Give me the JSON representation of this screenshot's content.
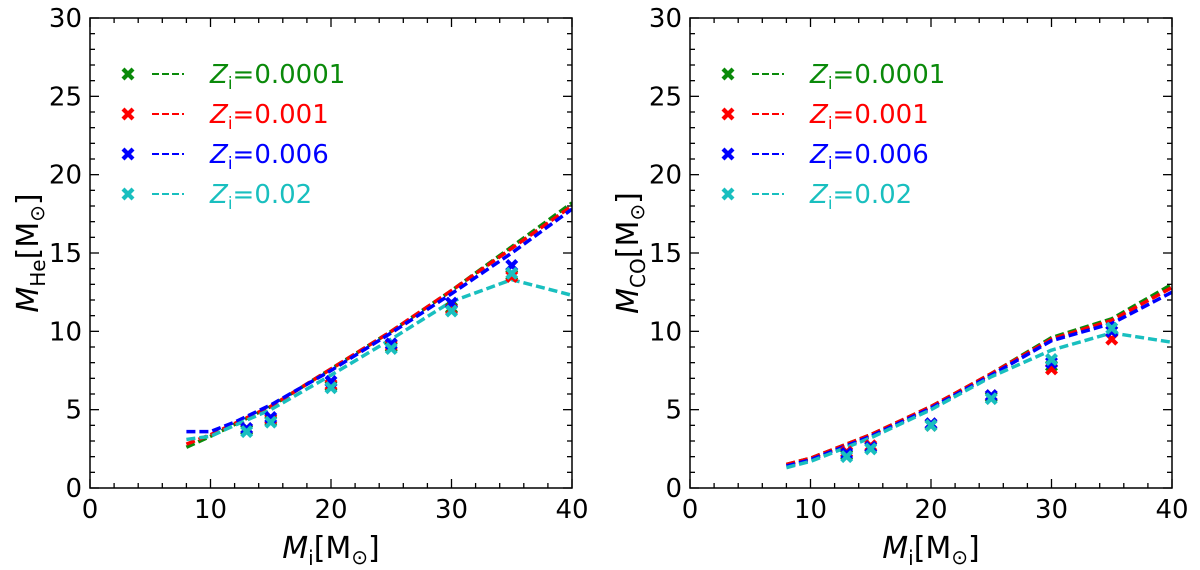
{
  "figure": {
    "panels": 2
  },
  "colors": {
    "green": "#0a8a0a",
    "red": "#ff0000",
    "blue": "#0000ff",
    "cyan": "#19bfbf",
    "axis": "#000000"
  },
  "chart_data": [
    {
      "type": "line",
      "panel": "left",
      "xlabel": {
        "sym": "M",
        "sub": "i",
        "unit": "[M",
        "unitsub": "⊙",
        "close": "]"
      },
      "ylabel": {
        "sym": "M",
        "sub": "He",
        "unit": "[M",
        "unitsub": "⊙",
        "close": "]"
      },
      "xlim": [
        0,
        40
      ],
      "ylim": [
        0,
        30
      ],
      "xticks": [
        "0",
        "10",
        "20",
        "30",
        "40"
      ],
      "yticks": [
        "0",
        "5",
        "10",
        "15",
        "20",
        "25",
        "30"
      ],
      "legend": [
        {
          "sym": "Z",
          "sub": "i",
          "rest": "=0.0001",
          "color": "#0a8a0a"
        },
        {
          "sym": "Z",
          "sub": "i",
          "rest": "=0.001",
          "color": "#ff0000"
        },
        {
          "sym": "Z",
          "sub": "i",
          "rest": "=0.006",
          "color": "#0000ff"
        },
        {
          "sym": "Z",
          "sub": "i",
          "rest": "=0.02",
          "color": "#19bfbf"
        }
      ],
      "series": [
        {
          "name": "Zi=0.0001",
          "color": "#0a8a0a",
          "line": {
            "x": [
              8,
              10,
              15,
              20,
              25,
              30,
              35,
              40
            ],
            "y": [
              2.6,
              3.3,
              5.2,
              7.6,
              10.0,
              12.6,
              15.4,
              18.2
            ]
          },
          "points": {
            "x": [
              13,
              15,
              20,
              25,
              30,
              35
            ],
            "y": [
              3.7,
              4.3,
              6.5,
              9.0,
              11.5,
              13.6
            ]
          }
        },
        {
          "name": "Zi=0.001",
          "color": "#ff0000",
          "line": {
            "x": [
              8,
              10,
              15,
              20,
              25,
              30,
              35,
              40
            ],
            "y": [
              2.8,
              3.4,
              5.2,
              7.6,
              10.0,
              12.6,
              15.3,
              18.0
            ]
          },
          "points": {
            "x": [
              13,
              15,
              20,
              25,
              30,
              35
            ],
            "y": [
              3.8,
              4.4,
              6.6,
              9.1,
              11.4,
              13.5
            ]
          }
        },
        {
          "name": "Zi=0.006",
          "color": "#0000ff",
          "line": {
            "x": [
              8,
              10,
              12,
              15,
              20,
              25,
              30,
              35,
              40
            ],
            "y": [
              3.6,
              3.6,
              4.2,
              5.3,
              7.5,
              9.9,
              12.4,
              15.0,
              17.8
            ]
          },
          "points": {
            "x": [
              13,
              15,
              20,
              25,
              30,
              35
            ],
            "y": [
              3.8,
              4.5,
              6.8,
              9.2,
              11.8,
              14.2
            ]
          }
        },
        {
          "name": "Zi=0.02",
          "color": "#19bfbf",
          "line": {
            "x": [
              8,
              10,
              12,
              15,
              20,
              25,
              30,
              35,
              40
            ],
            "y": [
              3.1,
              3.3,
              4.0,
              5.0,
              7.2,
              9.5,
              11.9,
              13.3,
              12.3
            ]
          },
          "points": {
            "x": [
              13,
              15,
              20,
              25,
              30,
              35
            ],
            "y": [
              3.6,
              4.2,
              6.4,
              8.9,
              11.3,
              13.7
            ]
          }
        }
      ]
    },
    {
      "type": "line",
      "panel": "right",
      "xlabel": {
        "sym": "M",
        "sub": "i",
        "unit": "[M",
        "unitsub": "⊙",
        "close": "]"
      },
      "ylabel": {
        "sym": "M",
        "sub": "CO",
        "unit": "[M",
        "unitsub": "⊙",
        "close": "]"
      },
      "xlim": [
        0,
        40
      ],
      "ylim": [
        0,
        30
      ],
      "xticks": [
        "0",
        "10",
        "20",
        "30",
        "40"
      ],
      "yticks": [
        "0",
        "5",
        "10",
        "15",
        "20",
        "25",
        "30"
      ],
      "legend": [
        {
          "sym": "Z",
          "sub": "i",
          "rest": "=0.0001",
          "color": "#0a8a0a"
        },
        {
          "sym": "Z",
          "sub": "i",
          "rest": "=0.001",
          "color": "#ff0000"
        },
        {
          "sym": "Z",
          "sub": "i",
          "rest": "=0.006",
          "color": "#0000ff"
        },
        {
          "sym": "Z",
          "sub": "i",
          "rest": "=0.02",
          "color": "#19bfbf"
        }
      ],
      "series": [
        {
          "name": "Zi=0.0001",
          "color": "#0a8a0a",
          "line": {
            "x": [
              8,
              10,
              15,
              20,
              25,
              30,
              35,
              40
            ],
            "y": [
              1.5,
              1.9,
              3.4,
              5.2,
              7.3,
              9.6,
              10.8,
              13.0
            ]
          },
          "points": {
            "x": [
              13,
              15,
              20,
              25,
              30,
              35
            ],
            "y": [
              2.1,
              2.6,
              4.0,
              5.8,
              7.8,
              10.0
            ]
          }
        },
        {
          "name": "Zi=0.001",
          "color": "#ff0000",
          "line": {
            "x": [
              8,
              10,
              15,
              20,
              25,
              30,
              35,
              40
            ],
            "y": [
              1.5,
              1.9,
              3.4,
              5.2,
              7.3,
              9.5,
              10.7,
              12.8
            ]
          },
          "points": {
            "x": [
              13,
              15,
              20,
              25,
              30,
              35
            ],
            "y": [
              2.3,
              2.7,
              4.1,
              5.9,
              7.6,
              9.5
            ]
          }
        },
        {
          "name": "Zi=0.006",
          "color": "#0000ff",
          "line": {
            "x": [
              8,
              10,
              15,
              20,
              25,
              30,
              35,
              40
            ],
            "y": [
              1.4,
              1.8,
              3.3,
              5.1,
              7.2,
              9.4,
              10.5,
              12.5
            ]
          },
          "points": {
            "x": [
              13,
              15,
              20,
              25,
              30,
              35
            ],
            "y": [
              2.2,
              2.6,
              4.1,
              5.9,
              8.0,
              10.0
            ]
          }
        },
        {
          "name": "Zi=0.02",
          "color": "#19bfbf",
          "line": {
            "x": [
              8,
              10,
              15,
              20,
              25,
              30,
              35,
              40
            ],
            "y": [
              1.3,
              1.7,
              3.2,
              5.0,
              7.1,
              8.8,
              9.9,
              9.3
            ]
          },
          "points": {
            "x": [
              13,
              15,
              20,
              25,
              30,
              35
            ],
            "y": [
              2.0,
              2.5,
              4.0,
              5.7,
              8.2,
              10.2
            ]
          }
        }
      ]
    }
  ]
}
